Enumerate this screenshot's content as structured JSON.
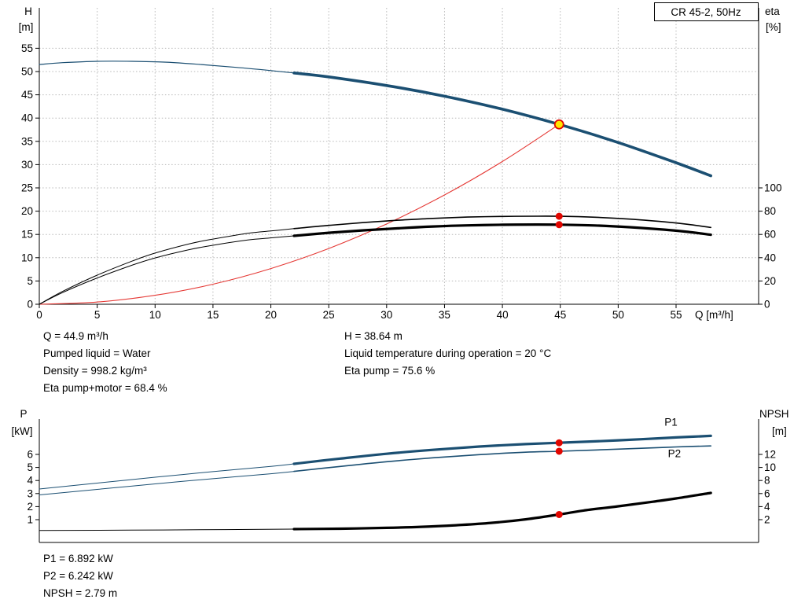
{
  "title_box": "CR 45-2, 50Hz",
  "info_top": {
    "left": [
      "Q = 44.9 m³/h",
      "Pumped liquid = Water",
      "Density = 998.2 kg/m³",
      "Eta pump+motor = 68.4 %"
    ],
    "right": [
      "H = 38.64 m",
      "Liquid temperature during operation = 20 °C",
      "Eta pump = 75.6 %"
    ]
  },
  "info_bottom": [
    "P1 = 6.892 kW",
    "P2 = 6.242 kW",
    "NPSH = 2.79 m"
  ],
  "colors": {
    "curve_blue": "#1b4f72",
    "curve_red": "#e53935",
    "curve_black": "#000000",
    "marker_red": "#e10600",
    "duty_yellow": "#ffe600",
    "grid": "#b8b8b8"
  },
  "chart_data": [
    {
      "type": "line",
      "id": "head-efficiency",
      "title": "CR 45-2, 50Hz",
      "xlabel": "Q [m³/h]",
      "ylabel_left": [
        "H",
        "[m]"
      ],
      "ylabel_right": [
        "eta",
        "[%]"
      ],
      "xlim": [
        0,
        62.1
      ],
      "ylim_left": [
        0,
        63.7
      ],
      "right_axis_scale": 4,
      "grid": true,
      "x_ticks": [
        0,
        5,
        10,
        15,
        20,
        25,
        30,
        35,
        40,
        45,
        50,
        55
      ],
      "y_ticks_left": [
        0,
        5,
        10,
        15,
        20,
        25,
        30,
        35,
        40,
        45,
        50,
        55
      ],
      "y_ticks_right": [
        0,
        20,
        40,
        60,
        80,
        100
      ],
      "series": [
        {
          "name": "head-thin",
          "color": "#1b4f72",
          "width": 1.2,
          "axis": "left",
          "points": [
            [
              0,
              51.5
            ],
            [
              2,
              51.9
            ],
            [
              5,
              52.2
            ],
            [
              8,
              52.2
            ],
            [
              11,
              52.0
            ],
            [
              14,
              51.5
            ],
            [
              17,
              50.9
            ],
            [
              20,
              50.2
            ],
            [
              22,
              49.7
            ]
          ]
        },
        {
          "name": "head",
          "color": "#1b4f72",
          "width": 3.6,
          "axis": "left",
          "points": [
            [
              22,
              49.7
            ],
            [
              25,
              48.85
            ],
            [
              30,
              47.0
            ],
            [
              35,
              44.7
            ],
            [
              40,
              41.9
            ],
            [
              44.9,
              38.64
            ],
            [
              50,
              34.75
            ],
            [
              55,
              30.4
            ],
            [
              58,
              27.6
            ]
          ]
        },
        {
          "name": "system-curve",
          "color": "#e53935",
          "width": 1.1,
          "axis": "left",
          "points": [
            [
              0,
              0
            ],
            [
              5,
              0.48
            ],
            [
              10,
              1.92
            ],
            [
              15,
              4.31
            ],
            [
              20,
              7.67
            ],
            [
              25,
              11.98
            ],
            [
              30,
              17.25
            ],
            [
              35,
              23.48
            ],
            [
              40,
              30.67
            ],
            [
              44.9,
              38.64
            ]
          ]
        },
        {
          "name": "eta-pump-thin",
          "color": "#000000",
          "width": 1,
          "axis": "right",
          "points": [
            [
              0,
              0
            ],
            [
              2,
              11
            ],
            [
              5,
              25
            ],
            [
              8,
              37
            ],
            [
              10,
              44
            ],
            [
              13,
              52
            ],
            [
              15,
              56
            ],
            [
              18,
              61
            ],
            [
              20,
              63
            ],
            [
              22,
              65
            ]
          ]
        },
        {
          "name": "eta-pump",
          "color": "#000000",
          "width": 1.6,
          "axis": "right",
          "points": [
            [
              22,
              65
            ],
            [
              25,
              67.8
            ],
            [
              28,
              70.2
            ],
            [
              31,
              72.2
            ],
            [
              34,
              73.8
            ],
            [
              37,
              74.9
            ],
            [
              40,
              75.5
            ],
            [
              43,
              75.7
            ],
            [
              45,
              75.6
            ],
            [
              48,
              74.8
            ],
            [
              51,
              73.2
            ],
            [
              54,
              70.8
            ],
            [
              56,
              68.7
            ],
            [
              58,
              66.0
            ]
          ]
        },
        {
          "name": "eta-pump-motor-thin",
          "color": "#000000",
          "width": 1,
          "axis": "right",
          "points": [
            [
              0,
              0
            ],
            [
              2,
              10
            ],
            [
              5,
              22.6
            ],
            [
              8,
              33.5
            ],
            [
              10,
              39.8
            ],
            [
              13,
              47
            ],
            [
              15,
              50.7
            ],
            [
              18,
              55.2
            ],
            [
              20,
              57
            ],
            [
              22,
              58.8
            ]
          ]
        },
        {
          "name": "eta-pump-motor",
          "color": "#000000",
          "width": 3.2,
          "axis": "right",
          "points": [
            [
              22,
              58.8
            ],
            [
              25,
              61.4
            ],
            [
              28,
              63.5
            ],
            [
              31,
              65.3
            ],
            [
              34,
              66.8
            ],
            [
              37,
              67.8
            ],
            [
              40,
              68.3
            ],
            [
              43,
              68.5
            ],
            [
              45,
              68.4
            ],
            [
              48,
              67.7
            ],
            [
              51,
              66.2
            ],
            [
              54,
              64.1
            ],
            [
              56,
              62.2
            ],
            [
              58,
              59.7
            ]
          ]
        }
      ],
      "markers": [
        {
          "name": "duty-point-marker",
          "x": 44.9,
          "y": 38.64,
          "axis": "left",
          "fill": "#ffe600",
          "stroke": "#e10600",
          "stroke_width": 1.8,
          "r": 5.5
        },
        {
          "name": "eta-pump-marker",
          "x": 44.9,
          "y": 75.6,
          "axis": "right",
          "fill": "#e10600",
          "r": 4.5
        },
        {
          "name": "eta-pump-motor-marker",
          "x": 44.9,
          "y": 68.4,
          "axis": "right",
          "fill": "#e10600",
          "r": 4.5
        }
      ]
    },
    {
      "type": "line",
      "id": "power-npsh",
      "ylabel_left": [
        "P",
        "[kW]"
      ],
      "ylabel_right": [
        "NPSH",
        "[m]"
      ],
      "xlim": [
        0,
        62.1
      ],
      "ylim_left": [
        -0.75,
        8.7
      ],
      "right_axis_scale": 2,
      "grid": false,
      "y_ticks_left": [
        1,
        2,
        3,
        4,
        5,
        6
      ],
      "y_ticks_right": [
        2,
        4,
        6,
        8,
        10,
        12
      ],
      "series": [
        {
          "name": "p1-thin",
          "color": "#1b4f72",
          "width": 1,
          "axis": "left",
          "points": [
            [
              0,
              3.35
            ],
            [
              5,
              3.8
            ],
            [
              10,
              4.25
            ],
            [
              15,
              4.68
            ],
            [
              20,
              5.08
            ],
            [
              22,
              5.28
            ]
          ]
        },
        {
          "name": "p1",
          "color": "#1b4f72",
          "width": 3.2,
          "axis": "left",
          "points": [
            [
              22,
              5.28
            ],
            [
              26,
              5.68
            ],
            [
              30,
              6.05
            ],
            [
              34,
              6.35
            ],
            [
              38,
              6.6
            ],
            [
              42,
              6.79
            ],
            [
              44.9,
              6.892
            ],
            [
              48,
              7.0
            ],
            [
              52,
              7.16
            ],
            [
              55,
              7.3
            ],
            [
              58,
              7.42
            ]
          ]
        },
        {
          "name": "p2-thin",
          "color": "#1b4f72",
          "width": 1,
          "axis": "left",
          "points": [
            [
              0,
              2.9
            ],
            [
              5,
              3.32
            ],
            [
              10,
              3.74
            ],
            [
              15,
              4.14
            ],
            [
              20,
              4.52
            ],
            [
              22,
              4.7
            ]
          ]
        },
        {
          "name": "p2",
          "color": "#1b4f72",
          "width": 1.6,
          "axis": "left",
          "points": [
            [
              22,
              4.7
            ],
            [
              26,
              5.08
            ],
            [
              30,
              5.44
            ],
            [
              34,
              5.74
            ],
            [
              38,
              5.98
            ],
            [
              42,
              6.17
            ],
            [
              44.9,
              6.242
            ],
            [
              48,
              6.34
            ],
            [
              52,
              6.47
            ],
            [
              55,
              6.57
            ],
            [
              58,
              6.65
            ]
          ]
        },
        {
          "name": "npsh-thin",
          "color": "#000000",
          "width": 1,
          "axis": "right",
          "points": [
            [
              0,
              0.35
            ],
            [
              8,
              0.4
            ],
            [
              16,
              0.48
            ],
            [
              22,
              0.55
            ]
          ]
        },
        {
          "name": "npsh",
          "color": "#000000",
          "width": 3.2,
          "axis": "right",
          "points": [
            [
              22,
              0.55
            ],
            [
              26,
              0.62
            ],
            [
              30,
              0.75
            ],
            [
              33,
              0.9
            ],
            [
              36,
              1.15
            ],
            [
              39,
              1.5
            ],
            [
              42,
              2.05
            ],
            [
              44.9,
              2.79
            ],
            [
              47,
              3.4
            ],
            [
              50,
              4.05
            ],
            [
              53,
              4.75
            ],
            [
              55,
              5.25
            ],
            [
              58,
              6.1
            ]
          ]
        }
      ],
      "labels": [
        {
          "text": "P1",
          "q": 54.0,
          "v": 8.2,
          "axis": "left",
          "color": "#1b4f72"
        },
        {
          "text": "P2",
          "q": 54.3,
          "v": 5.78,
          "axis": "left",
          "color": "#1b4f72"
        }
      ],
      "markers": [
        {
          "name": "p1-marker",
          "x": 44.9,
          "y": 6.892,
          "axis": "left",
          "fill": "#e10600",
          "r": 4.5
        },
        {
          "name": "p2-marker",
          "x": 44.9,
          "y": 6.242,
          "axis": "left",
          "fill": "#e10600",
          "r": 4.5
        },
        {
          "name": "npsh-marker",
          "x": 44.9,
          "y": 2.79,
          "axis": "right",
          "fill": "#e10600",
          "r": 4.5
        }
      ]
    }
  ]
}
